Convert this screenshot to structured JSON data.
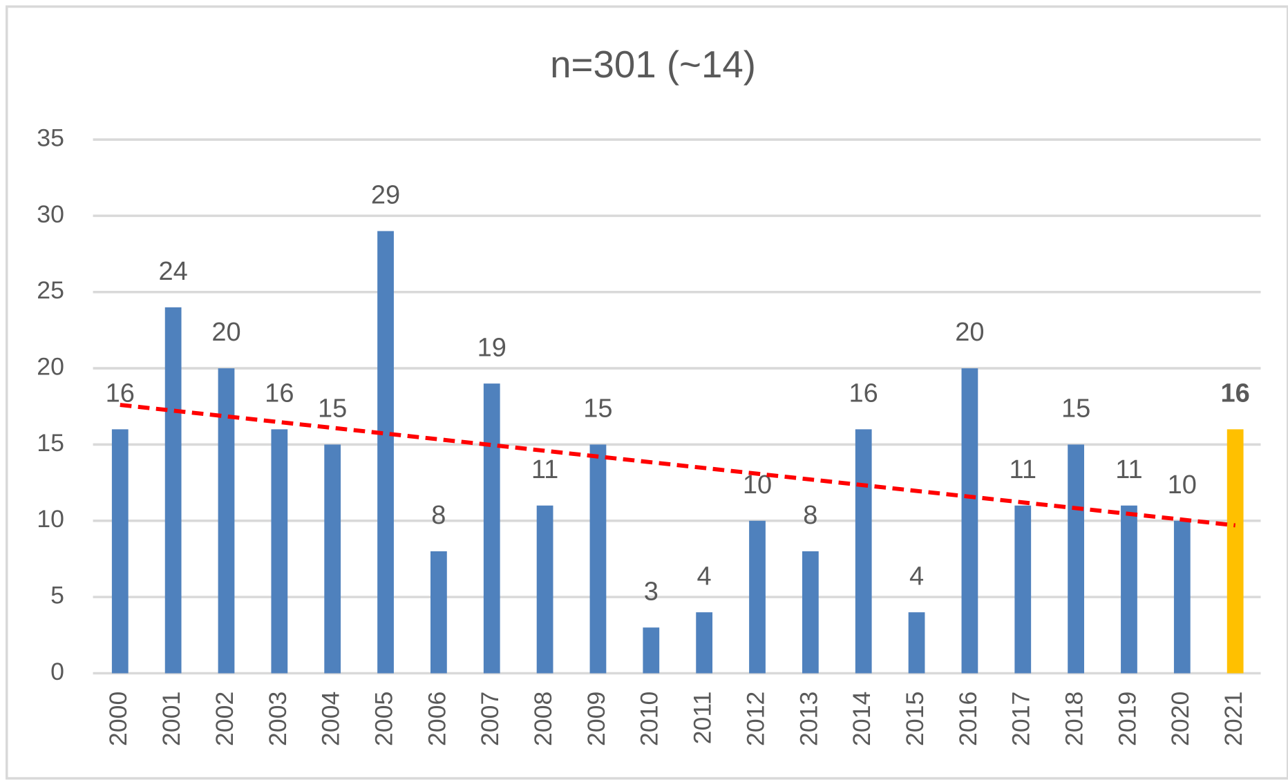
{
  "chart_data": {
    "type": "bar",
    "title": "n=301 (~14)",
    "categories": [
      "2000",
      "2001",
      "2002",
      "2003",
      "2004",
      "2005",
      "2006",
      "2007",
      "2008",
      "2009",
      "2010",
      "2011",
      "2012",
      "2013",
      "2014",
      "2015",
      "2016",
      "2017",
      "2018",
      "2019",
      "2020",
      "2021"
    ],
    "values": [
      16,
      24,
      20,
      16,
      15,
      29,
      8,
      19,
      11,
      15,
      3,
      4,
      10,
      8,
      16,
      4,
      20,
      11,
      15,
      11,
      10,
      16
    ],
    "color": "#4f81bd",
    "highlight": {
      "index": 21,
      "color": "#ffc000"
    },
    "trendline": {
      "start": 17.6,
      "end": 9.7,
      "color": "#ff0000"
    },
    "ylim": [
      0,
      35
    ],
    "yticks": [
      0,
      5,
      10,
      15,
      20,
      25,
      30,
      35
    ],
    "grid": true
  }
}
